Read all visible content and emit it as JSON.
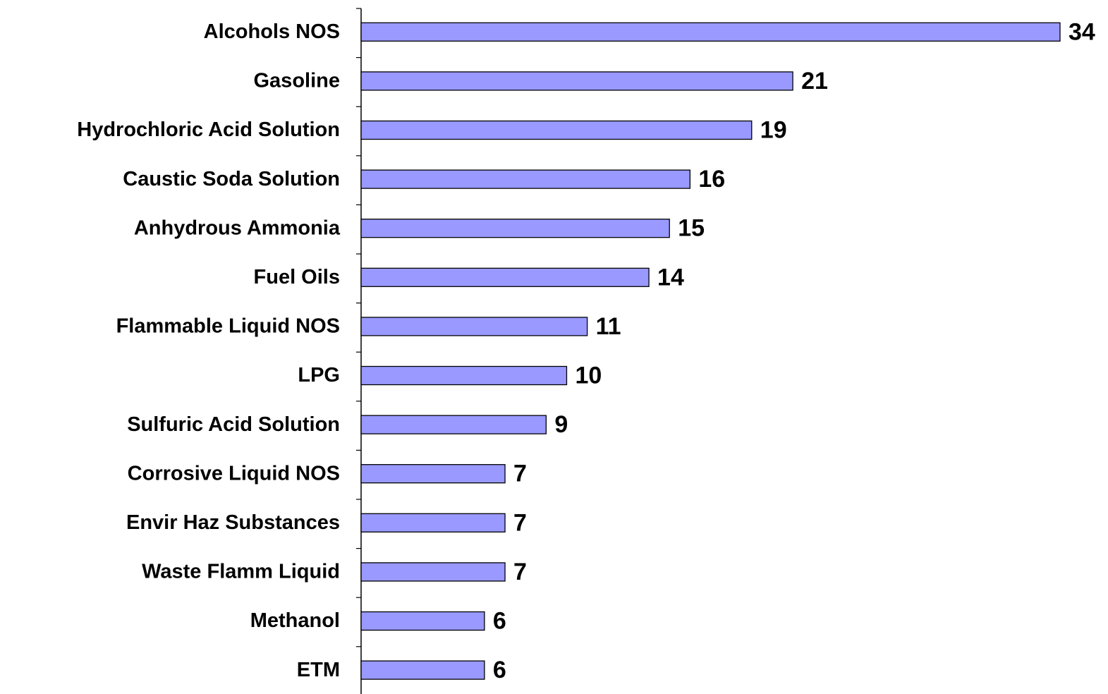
{
  "chart_data": {
    "type": "bar",
    "orientation": "horizontal",
    "categories": [
      "Alcohols NOS",
      "Gasoline",
      "Hydrochloric Acid Solution",
      "Caustic Soda Solution",
      "Anhydrous Ammonia",
      "Fuel Oils",
      "Flammable Liquid NOS",
      "LPG",
      "Sulfuric Acid Solution",
      "Corrosive Liquid NOS",
      "Envir Haz Substances",
      "Waste Flamm Liquid",
      "Methanol",
      "ETM"
    ],
    "values": [
      34,
      21,
      19,
      16,
      15,
      14,
      11,
      10,
      9,
      7,
      7,
      7,
      6,
      6
    ],
    "color": "#9999ff"
  }
}
